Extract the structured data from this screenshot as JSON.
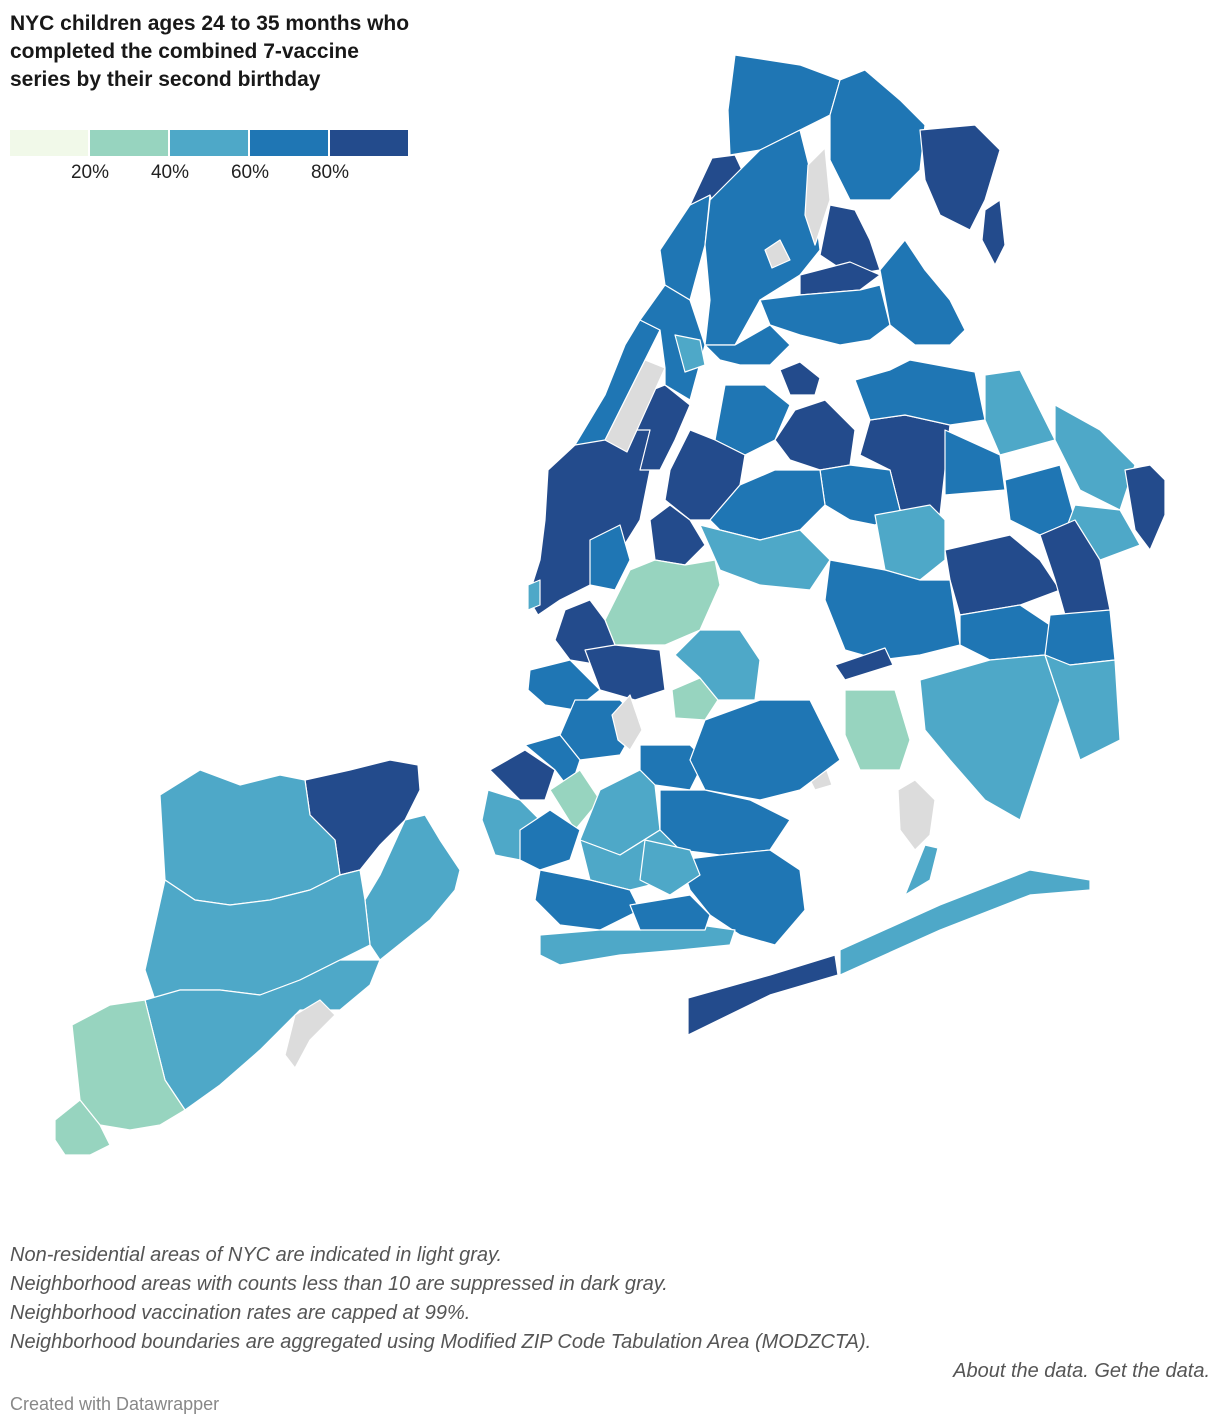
{
  "title": "NYC children ages 24 to 35 months who completed the combined 7-vaccine series by their second birthday",
  "legend": {
    "colors": [
      "#f1f9e9",
      "#97d4bf",
      "#4ea8c8",
      "#1f76b4",
      "#234b8c"
    ],
    "ticks": [
      "20%",
      "40%",
      "60%",
      "80%"
    ]
  },
  "palette": {
    "bin_0_20": "#f1f9e9",
    "bin_20_40": "#97d4bf",
    "bin_40_60": "#4ea8c8",
    "bin_60_80": "#1f76b4",
    "bin_80_99": "#234b8c",
    "non_residential": "#dcdcdc"
  },
  "notes": [
    "Non-residential areas of NYC are indicated in light gray.",
    "Neighborhood areas with counts less than 10 are suppressed in dark gray.",
    "Neighborhood vaccination rates are capped at 99%.",
    "Neighborhood boundaries are aggregated using Modified ZIP Code Tabulation Area (MODZCTA)."
  ],
  "links": {
    "about": "About the data.",
    "get": "Get the data."
  },
  "credit": "Created with Datawrapper"
}
